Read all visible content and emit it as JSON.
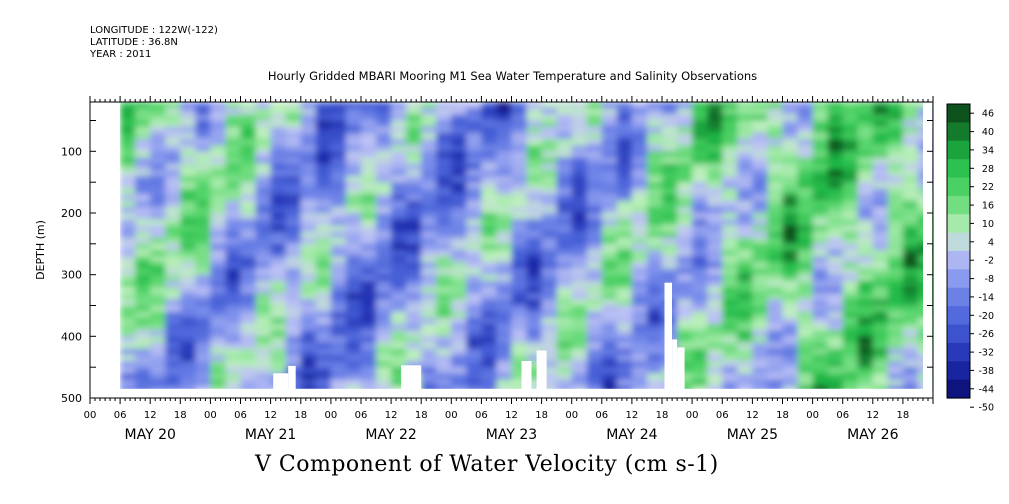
{
  "header": {
    "longitude": "LONGITUDE : 122W(-122)",
    "latitude": "LATITUDE : 36.8N",
    "year": "YEAR : 2011"
  },
  "chart_data": {
    "type": "heatmap",
    "title": "Hourly Gridded MBARI Mooring M1 Sea Water Temperature and Salinity Observations",
    "caption": "V Component of Water Velocity (cm s-1)",
    "ylabel": "DEPTH (m)",
    "xlabel": "",
    "ylim": [
      500,
      20
    ],
    "y_ticks": [
      100,
      200,
      300,
      400,
      500
    ],
    "x_day_labels": [
      "MAY 20",
      "MAY 21",
      "MAY 22",
      "MAY 23",
      "MAY 24",
      "MAY 25",
      "MAY 26"
    ],
    "x_hour_labels": [
      "00",
      "06",
      "12",
      "18"
    ],
    "x_range_hours_from_may20_00": [
      0,
      168
    ],
    "data_start_hour": 6,
    "data_depth_range_m": [
      20,
      485
    ],
    "colorbar_levels": [
      46,
      40,
      34,
      28,
      22,
      16,
      10,
      4,
      -2,
      -8,
      -14,
      -20,
      -26,
      -32,
      -38,
      -44,
      -50
    ],
    "colorbar_tick_labels": [
      "46",
      "40",
      "34",
      "28",
      "22",
      "16",
      "10",
      "4",
      "-2",
      "-8",
      "-14",
      "-20",
      "-26",
      "-32",
      "-38",
      "-44",
      "-50"
    ],
    "colors": {
      "positive_high": "#0b3d12",
      "positive_mid": "#2fd45b",
      "positive_low": "#b8f3b8",
      "near_zero": "#c8c8f0",
      "negative_mid": "#5a78e0",
      "negative_high": "#0a0a6e"
    },
    "approx_mean_profile_by_day": [
      {
        "day": "MAY 20",
        "upper_m_v": 18,
        "lower_m_v": -6
      },
      {
        "day": "MAY 21",
        "upper_m_v": 2,
        "lower_m_v": -10
      },
      {
        "day": "MAY 22",
        "upper_m_v": -14,
        "lower_m_v": -12
      },
      {
        "day": "MAY 23",
        "upper_m_v": -12,
        "lower_m_v": -6
      },
      {
        "day": "MAY 24",
        "upper_m_v": -10,
        "lower_m_v": -8
      },
      {
        "day": "MAY 25",
        "upper_m_v": 8,
        "lower_m_v": -4
      },
      {
        "day": "MAY 26",
        "upper_m_v": 14,
        "lower_m_v": 10
      }
    ]
  }
}
